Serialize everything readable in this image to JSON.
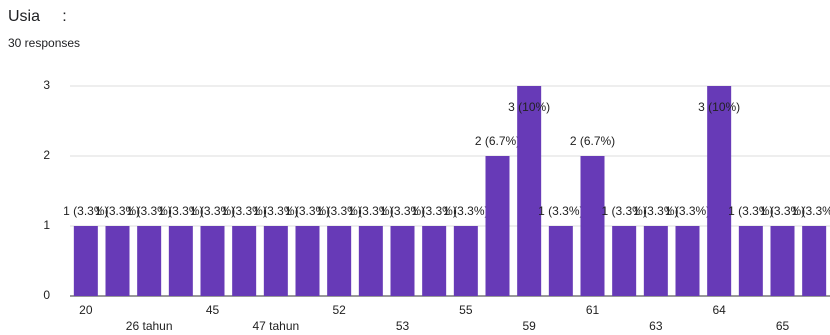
{
  "header": {
    "title": "Usia     :",
    "subtitle": "30 responses"
  },
  "chart_data": {
    "type": "bar",
    "categories": [
      "20",
      null,
      "26 tahun",
      null,
      "45",
      null,
      "47 tahun",
      null,
      "52",
      null,
      "53",
      null,
      "55",
      null,
      "59",
      null,
      "61",
      null,
      "63",
      null,
      "64",
      null,
      "65",
      null
    ],
    "values": [
      1,
      1,
      1,
      1,
      1,
      1,
      1,
      1,
      1,
      1,
      1,
      1,
      1,
      2,
      3,
      1,
      2,
      1,
      1,
      1,
      3,
      1,
      1,
      1
    ],
    "value_labels": [
      "1 (3.3%)",
      "1 (3.3%)",
      "1 (3.3%)",
      "1 (3.3%)",
      "1 (3.3%)",
      "1 (3.3%)",
      "1 (3.3%)",
      "1 (3.3%)",
      "1 (3.3%)",
      "1 (3.3%)",
      "1 (3.3%)",
      "1 (3.3%)",
      "1 (3.3%)",
      "2 (6.7%)",
      "3 (10%)",
      "1 (3.3%)",
      "2 (6.7%)",
      "1 (3.3%)",
      "1 (3.3%)",
      "1 (3.3%)",
      "3 (10%)",
      "1 (3.3%)",
      "1 (3.3%)",
      "1 (3.3%)"
    ],
    "color": "#673ab7",
    "ylim": [
      0,
      3
    ],
    "yticks": [
      0,
      1,
      2,
      3
    ],
    "grid": true
  }
}
